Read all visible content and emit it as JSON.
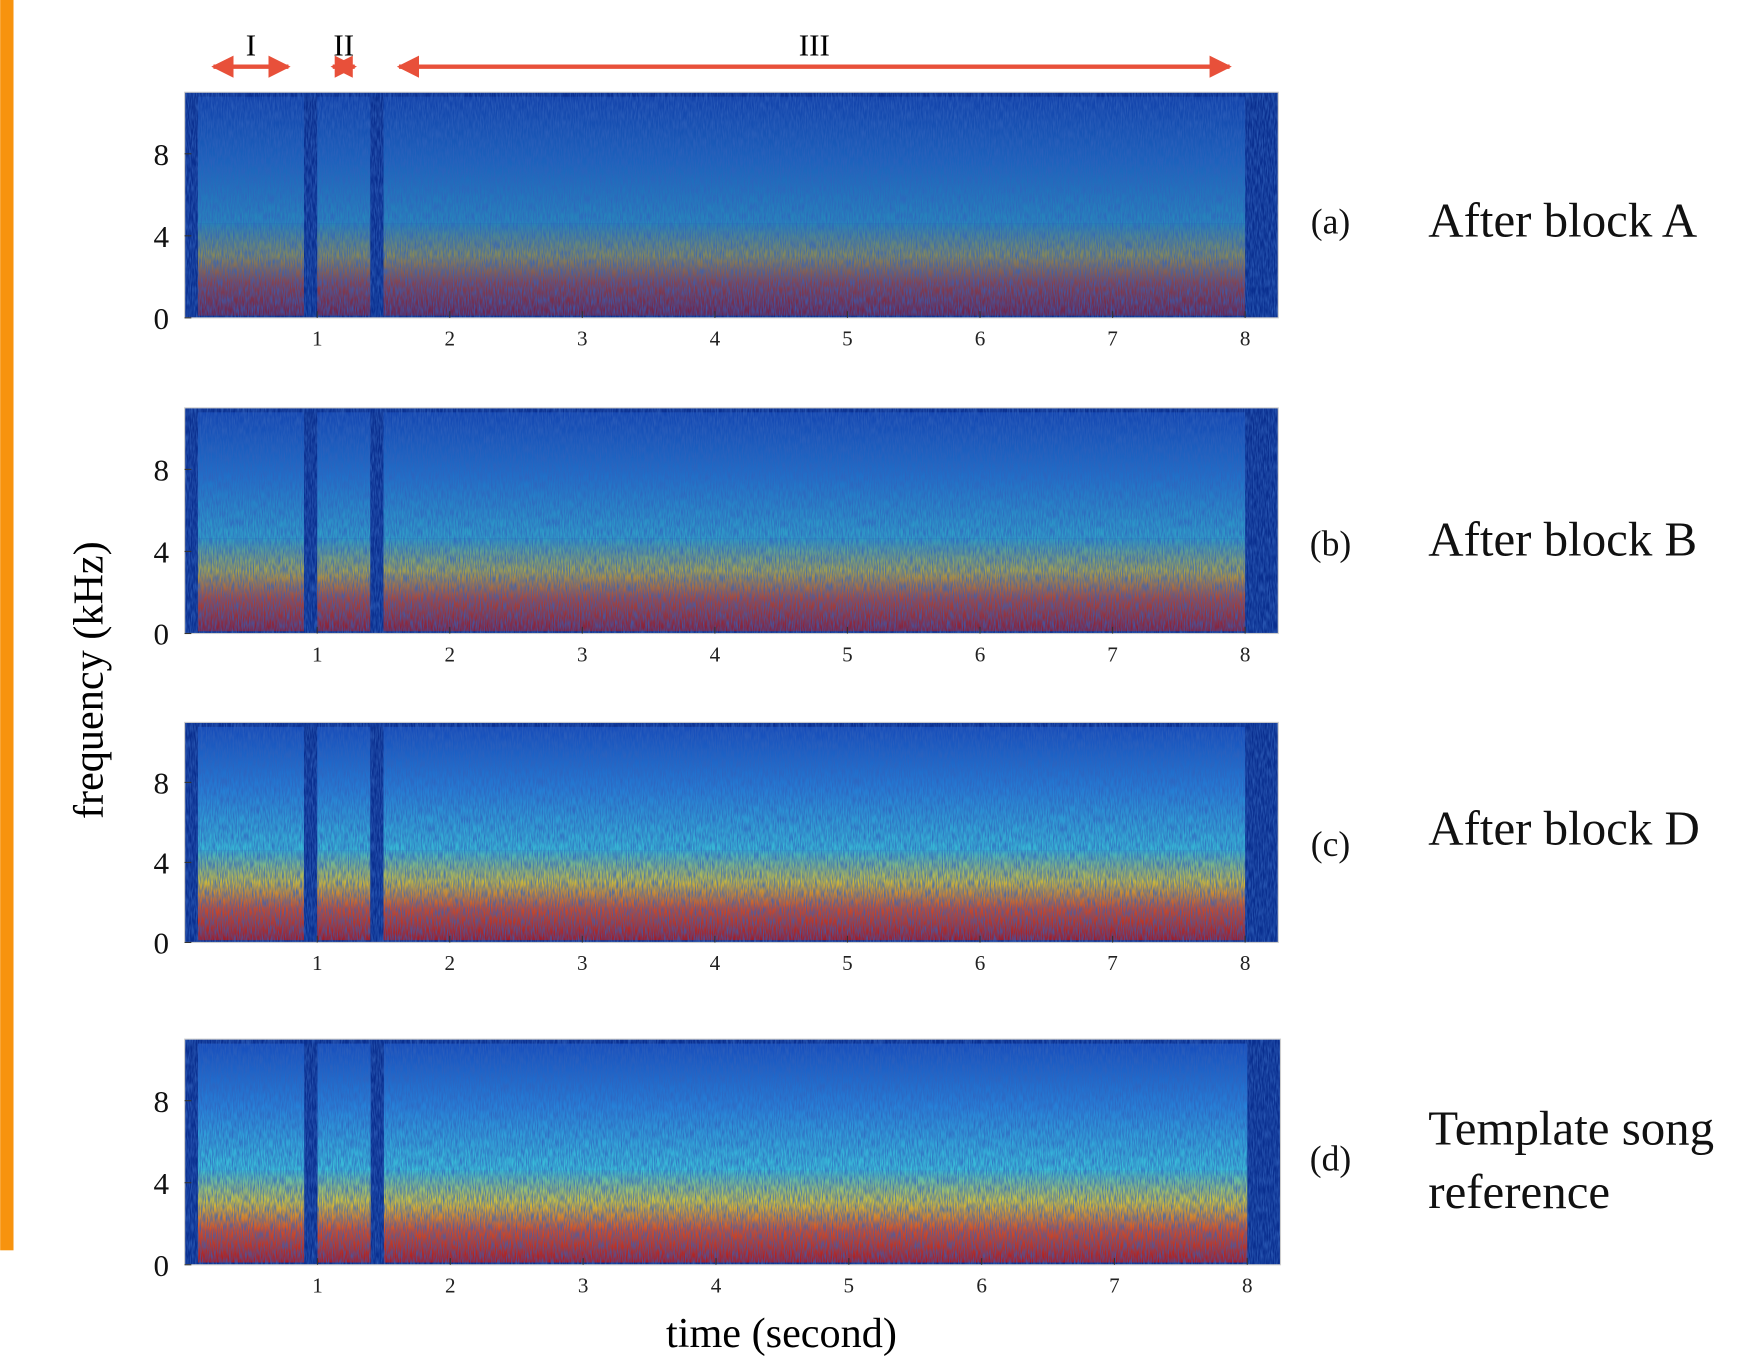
{
  "figure": {
    "ylabel": "frequency (kHz)",
    "xlabel": "time (second)",
    "segments": [
      {
        "label": "I",
        "start": 0.1,
        "end": 0.9
      },
      {
        "label": "II",
        "start": 1.0,
        "end": 1.4
      },
      {
        "label": "III",
        "start": 1.5,
        "end": 8.0
      }
    ]
  },
  "chart_data": [
    {
      "type": "spectrogram",
      "panel_label": "(a)",
      "label_lines": [
        "After block A"
      ],
      "xlim": [
        0,
        8.25
      ],
      "xticks": [
        1,
        2,
        3,
        4,
        5,
        6,
        7,
        8
      ],
      "ylim": [
        0,
        11
      ],
      "yticks": [
        0,
        4,
        8
      ]
    },
    {
      "type": "spectrogram",
      "panel_label": "(b)",
      "label_lines": [
        "After block B"
      ],
      "xlim": [
        0,
        8.25
      ],
      "xticks": [
        1,
        2,
        3,
        4,
        5,
        6,
        7,
        8
      ],
      "ylim": [
        0,
        11
      ],
      "yticks": [
        0,
        4,
        8
      ]
    },
    {
      "type": "spectrogram",
      "panel_label": "(c)",
      "label_lines": [
        "After block D"
      ],
      "xlim": [
        0,
        8.25
      ],
      "xticks": [
        1,
        2,
        3,
        4,
        5,
        6,
        7,
        8
      ],
      "ylim": [
        0,
        11
      ],
      "yticks": [
        0,
        4,
        8
      ]
    },
    {
      "type": "spectrogram",
      "panel_label": "(d)",
      "label_lines": [
        "Template song",
        "reference"
      ],
      "xlim": [
        0,
        8.25
      ],
      "xticks": [
        1,
        2,
        3,
        4,
        5,
        6,
        7,
        8
      ],
      "ylim": [
        0,
        11
      ],
      "yticks": [
        0,
        4,
        8
      ]
    }
  ]
}
